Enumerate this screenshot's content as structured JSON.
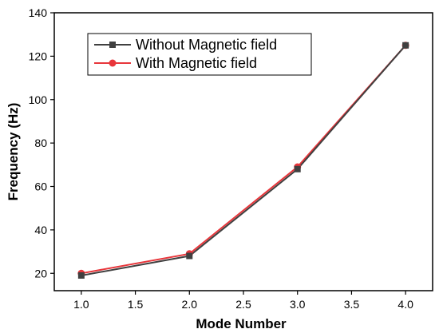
{
  "chart_data": {
    "type": "line",
    "xlabel": "Mode Number",
    "ylabel": "Frequency (Hz)",
    "xlim": [
      0.75,
      4.25
    ],
    "ylim": [
      12,
      140
    ],
    "xticks": [
      1.0,
      1.5,
      2.0,
      2.5,
      3.0,
      3.5,
      4.0
    ],
    "xtick_labels": [
      "1.0",
      "1.5",
      "2.0",
      "2.5",
      "3.0",
      "3.5",
      "4.0"
    ],
    "yticks": [
      20,
      40,
      60,
      80,
      100,
      120,
      140
    ],
    "ytick_labels": [
      "20",
      "40",
      "60",
      "80",
      "100",
      "120",
      "140"
    ],
    "grid": false,
    "legend_position": "top-left",
    "x": [
      1.0,
      2.0,
      3.0,
      4.0
    ],
    "series": [
      {
        "name": "Without Magnetic field",
        "values": [
          19,
          28,
          68,
          125
        ],
        "color": "#404040",
        "marker": "square"
      },
      {
        "name": "With Magnetic field",
        "values": [
          20,
          29,
          69,
          125
        ],
        "color": "#e8363b",
        "marker": "circle"
      }
    ]
  }
}
